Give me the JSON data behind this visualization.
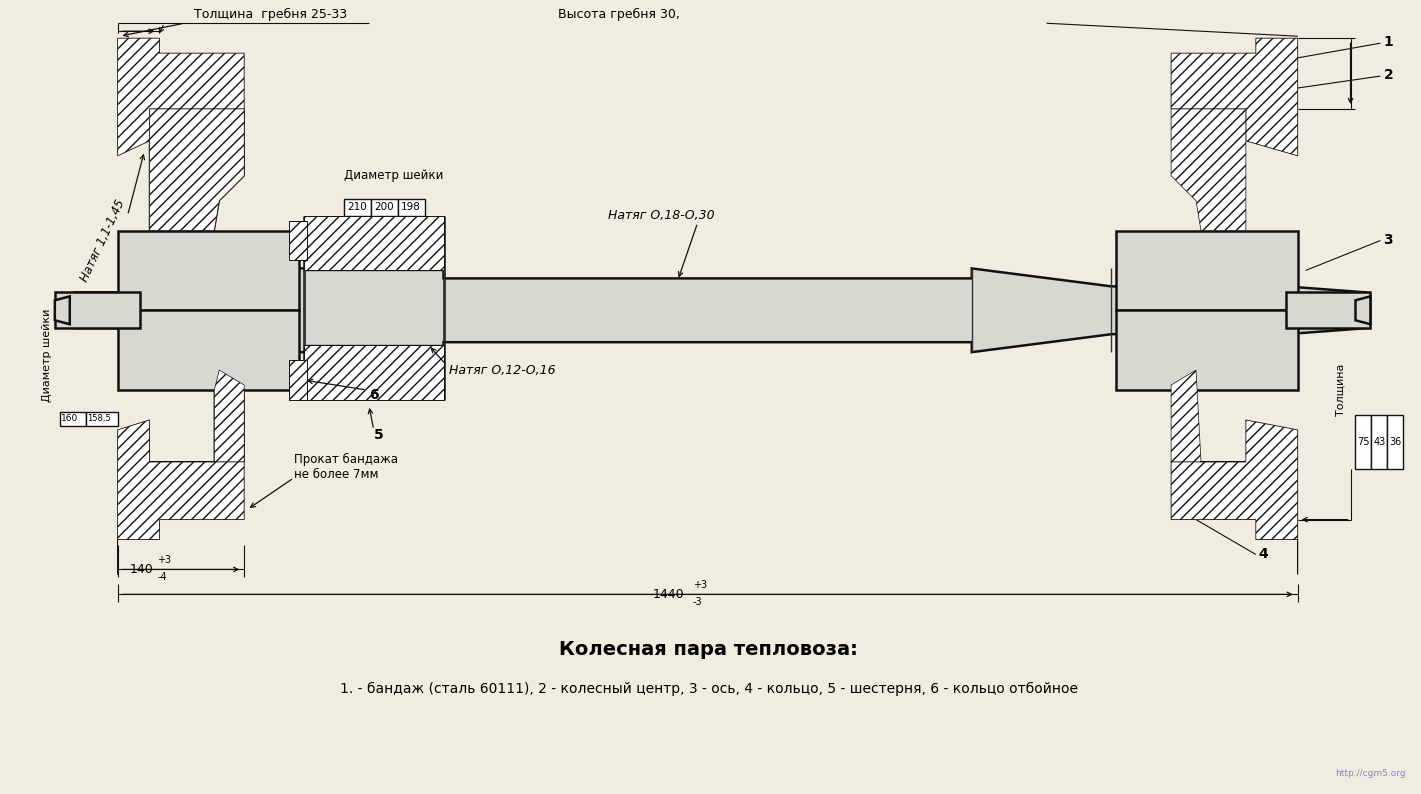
{
  "bg_color": "#f0ede0",
  "title": "Колесная пара тепловоза:",
  "subtitle": "1. - бандаж (сталь 60111), 2 - колесный центр, 3 - ось, 4 - кольцо, 5 - шестерня, 6 - кольцо отбойное",
  "title_fontsize": 14,
  "subtitle_fontsize": 10,
  "annotations": {
    "толщина_гребня": "Толщина  гребня 25-33",
    "высота_гребня": "Высота гребня 30,",
    "диаметр_шейки_label": "Диаметр шейки",
    "натяг_018": "Натяг О,18-О,30",
    "натяг_112": "Натяг 1,1-1,45",
    "натяг_012": "Натяг О,12-О,16",
    "диаметр_шейки2": "Диаметр шейки",
    "прокат": "Прокат бандажа\nне более 7мм",
    "label1": "1",
    "label2": "2",
    "label3": "3",
    "label4": "4",
    "label5": "5",
    "label6": "6"
  },
  "line_color": "#111111",
  "text_color": "#000000",
  "watermark": "http://cgm5.org"
}
